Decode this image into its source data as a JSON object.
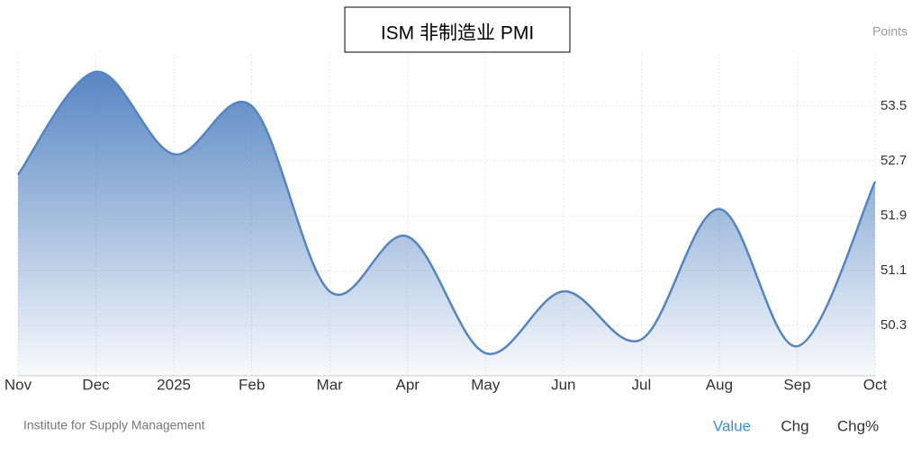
{
  "chart_data": {
    "type": "area",
    "title": "ISM 非制造业 PMI",
    "y_axis_label": "Points",
    "source": "Institute for Supply Management",
    "buttons": [
      "Value",
      "Chg",
      "Chg%"
    ],
    "categories": [
      "Nov",
      "Dec",
      "2025",
      "Feb",
      "Mar",
      "Apr",
      "May",
      "Jun",
      "Jul",
      "Aug",
      "Sep",
      "Oct"
    ],
    "series": [
      {
        "name": "ISM 非制造业 PMI",
        "color": "#5584c0",
        "values": [
          52.5,
          54.0,
          52.8,
          53.5,
          50.8,
          51.6,
          49.9,
          50.8,
          50.1,
          52.0,
          50.0,
          52.4
        ]
      }
    ],
    "ylim": [
      49.57,
      54.26
    ],
    "yticks": [
      50.3,
      51.1,
      51.9,
      52.7,
      53.5
    ],
    "grid": true
  }
}
